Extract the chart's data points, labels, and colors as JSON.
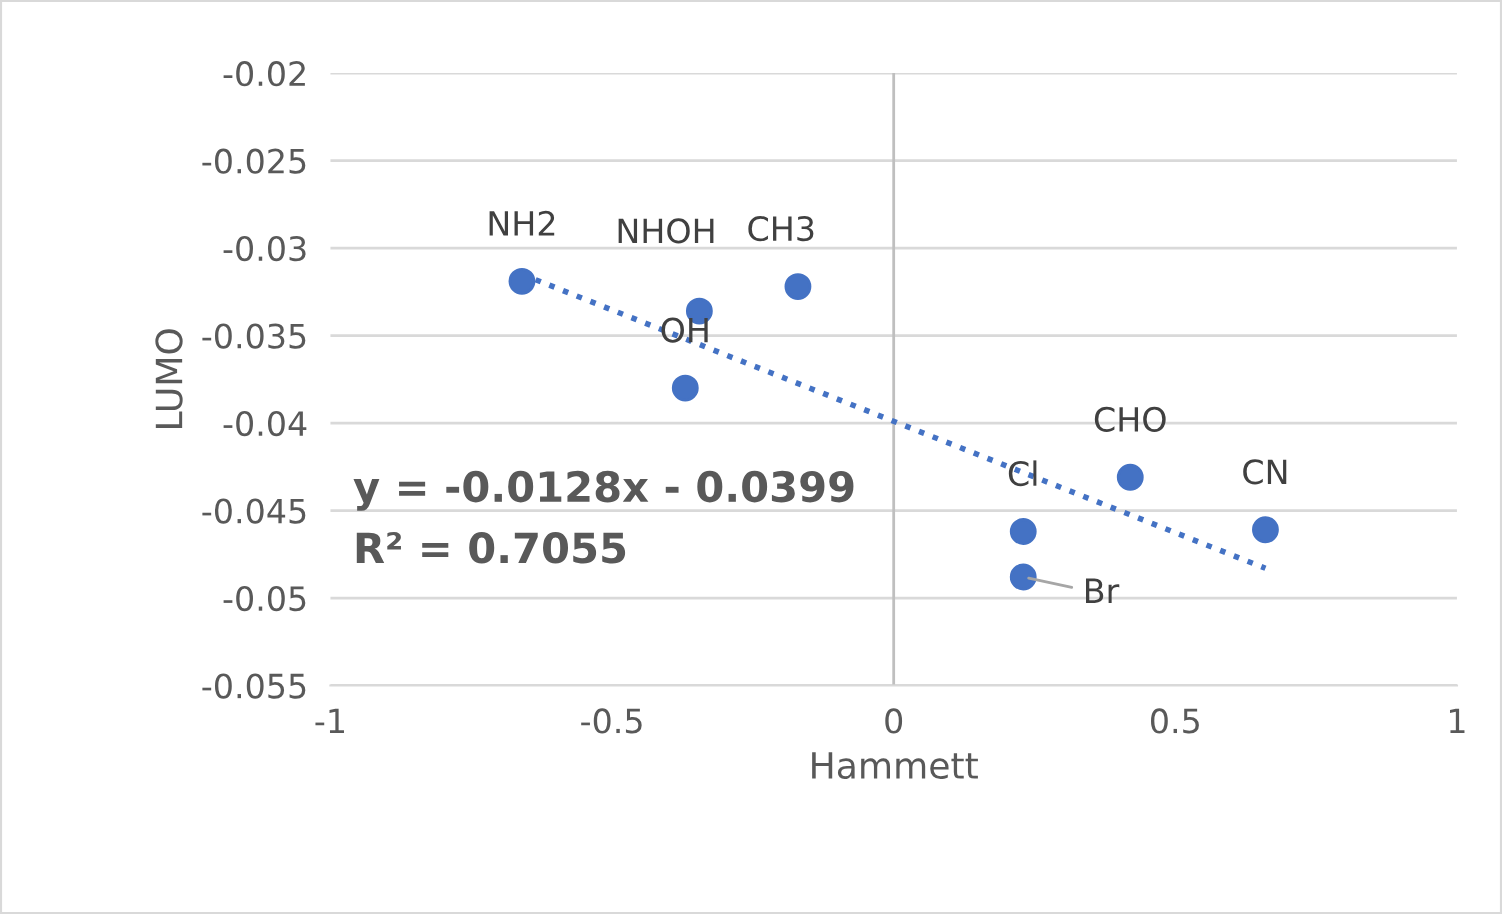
{
  "chart_data": {
    "type": "scatter",
    "xlabel": "Hammett",
    "ylabel": "LUMO",
    "series": [
      {
        "color": "#4472c4",
        "x": [
          -0.66,
          -0.345,
          -0.17,
          -0.37,
          0.23,
          0.23,
          0.42,
          0.66
        ],
        "values": [
          -0.0319,
          -0.0336,
          -0.0322,
          -0.038,
          -0.0462,
          -0.0488,
          -0.0431,
          -0.0461
        ],
        "marker": "circle"
      },
      {
        "type": "line",
        "color": "#4472c4",
        "x": [
          -0.66,
          0.66
        ],
        "values": [
          -0.0315,
          -0.0483
        ],
        "line_style": "dotted",
        "marker": "none"
      }
    ],
    "annotations": [
      {
        "text": "NH2",
        "x": -0.66,
        "y": -0.0319
      },
      {
        "text": "NHOH",
        "x": -0.345,
        "y": -0.0336
      },
      {
        "text": "CH3",
        "x": -0.17,
        "y": -0.0322
      },
      {
        "text": "OH",
        "x": -0.37,
        "y": -0.038
      },
      {
        "text": "Cl",
        "x": 0.23,
        "y": -0.0462
      },
      {
        "text": "Br",
        "x": 0.23,
        "y": -0.0488
      },
      {
        "text": "CHO",
        "x": 0.42,
        "y": -0.0431
      },
      {
        "text": "CN",
        "x": 0.66,
        "y": -0.0461
      },
      "y = -0.0128x - 0.0399",
      "R² = 0.7055"
    ],
    "ref_lines": [
      {
        "axis": "x",
        "value": 0,
        "color": "#bfbfbf"
      }
    ],
    "xlim": [
      -1,
      1
    ],
    "xticks": [
      -1,
      -0.5,
      0,
      0.5,
      1
    ],
    "ylim": [
      -0.055,
      -0.02
    ],
    "yticks": [
      -0.055,
      -0.05,
      -0.045,
      -0.04,
      -0.035,
      -0.03,
      -0.025,
      -0.02
    ],
    "grid": "y"
  }
}
